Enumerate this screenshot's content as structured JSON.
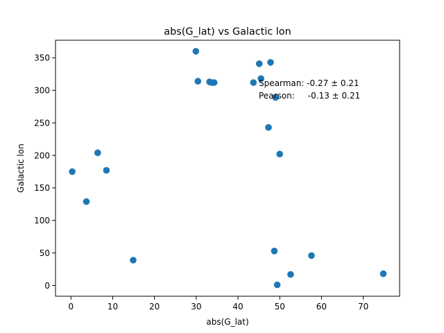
{
  "chart_data": {
    "type": "scatter",
    "title": "abs(G_lat) vs Galactic lon",
    "xlabel": "abs(G_lat)",
    "ylabel": "Galactic lon",
    "xlim": [
      -3.7,
      78.7
    ],
    "ylim": [
      -16.5,
      377
    ],
    "xticks": [
      0,
      10,
      20,
      30,
      40,
      50,
      60,
      70
    ],
    "yticks": [
      0,
      50,
      100,
      150,
      200,
      250,
      300,
      350
    ],
    "grid": false,
    "marker_color": "#1f77b4",
    "points": [
      {
        "x": 0.3,
        "y": 175
      },
      {
        "x": 3.7,
        "y": 129
      },
      {
        "x": 6.4,
        "y": 204
      },
      {
        "x": 8.5,
        "y": 177
      },
      {
        "x": 14.9,
        "y": 39
      },
      {
        "x": 29.9,
        "y": 360
      },
      {
        "x": 30.4,
        "y": 314
      },
      {
        "x": 33.2,
        "y": 313
      },
      {
        "x": 33.7,
        "y": 312
      },
      {
        "x": 34.3,
        "y": 312
      },
      {
        "x": 43.7,
        "y": 312
      },
      {
        "x": 45.1,
        "y": 341
      },
      {
        "x": 45.5,
        "y": 318
      },
      {
        "x": 47.3,
        "y": 243
      },
      {
        "x": 47.8,
        "y": 343
      },
      {
        "x": 48.7,
        "y": 53
      },
      {
        "x": 49.0,
        "y": 289
      },
      {
        "x": 49.4,
        "y": 1
      },
      {
        "x": 50.0,
        "y": 202
      },
      {
        "x": 52.6,
        "y": 17
      },
      {
        "x": 57.6,
        "y": 46
      },
      {
        "x": 74.8,
        "y": 18
      }
    ],
    "annotations": [
      "Spearman: -0.27 ± 0.21",
      "Pearson:     -0.13 ± 0.21"
    ]
  }
}
